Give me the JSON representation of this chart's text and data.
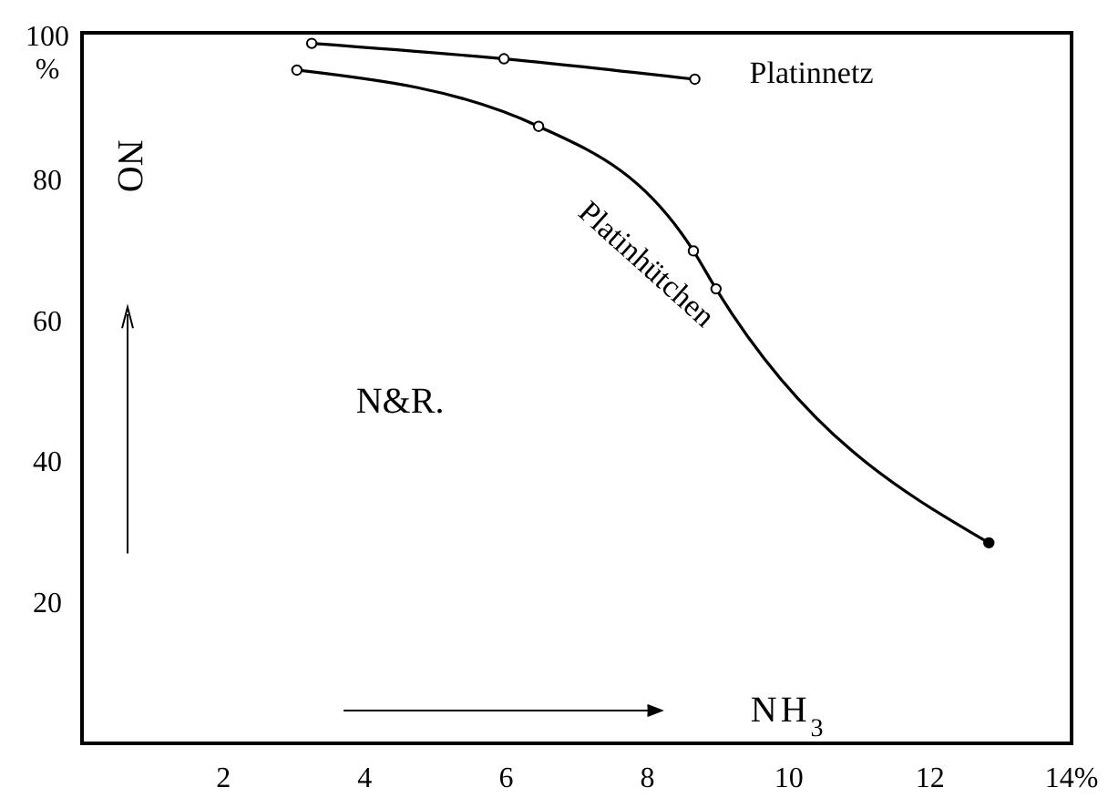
{
  "chart_data": {
    "type": "line",
    "xlabel": "NH$_{3}$",
    "ylabel": "NO",
    "annotations": [
      "N&R."
    ],
    "xlim": [
      0,
      14
    ],
    "ylim": [
      0,
      101
    ],
    "xticks": [
      2,
      4,
      6,
      8,
      10,
      12,
      {
        "value": 14,
        "label": "14%"
      }
    ],
    "yticks": [
      20,
      40,
      60,
      80,
      {
        "value": 100,
        "label": "100 %"
      }
    ],
    "grid": false,
    "marker": "circle",
    "line_style": "solid",
    "series": [
      {
        "name": "Platinnetz",
        "color": "#000000",
        "x": [
          3.25,
          5.97,
          8.67
        ],
        "values": [
          99.5,
          97.3,
          94.4
        ]
      },
      {
        "name": "Platinhütchen",
        "color": "#000000",
        "x": [
          3.04,
          6.46,
          8.65,
          8.97,
          12.83
        ],
        "values": [
          95.7,
          87.7,
          70.0,
          64.6,
          28.5
        ]
      }
    ]
  }
}
